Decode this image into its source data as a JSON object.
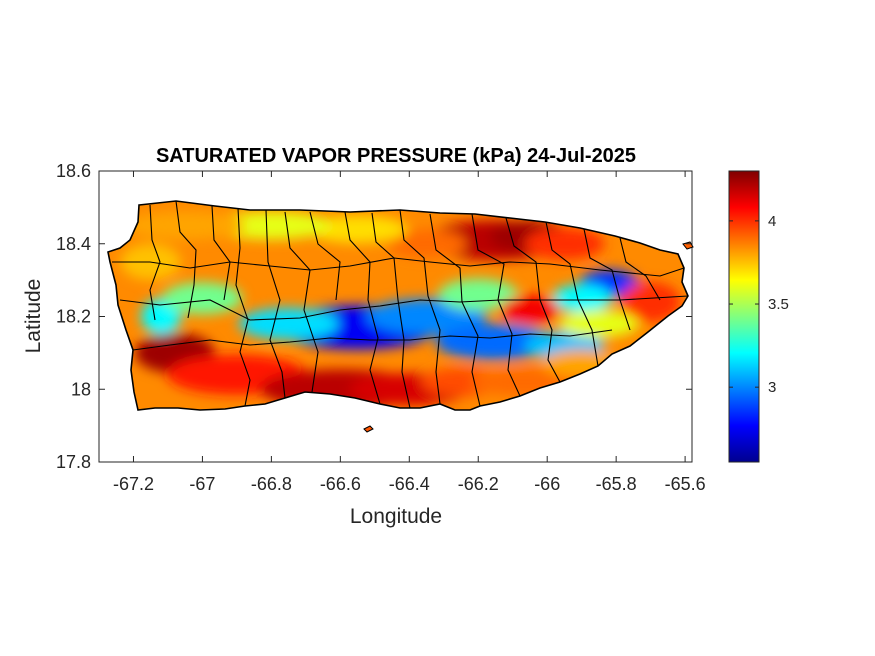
{
  "chart_data": {
    "type": "heatmap",
    "title": "SATURATED VAPOR PRESSURE (kPa) 24-Jul-2025",
    "xlabel": "Longitude",
    "ylabel": "Latitude",
    "xlim": [
      -67.3,
      -65.58
    ],
    "ylim": [
      17.8,
      18.6
    ],
    "xticks": [
      -67.2,
      -67,
      -66.8,
      -66.6,
      -66.4,
      -66.2,
      -66,
      -65.8,
      -65.6
    ],
    "xtick_labels": [
      "-67.2",
      "-67",
      "-66.8",
      "-66.6",
      "-66.4",
      "-66.2",
      "-66",
      "-65.8",
      "-65.6"
    ],
    "yticks": [
      17.8,
      18,
      18.2,
      18.4,
      18.6
    ],
    "ytick_labels": [
      "17.8",
      "18",
      "18.2",
      "18.4",
      "18.6"
    ],
    "colormap": "jet",
    "colorbar": {
      "range": [
        2.55,
        4.3
      ],
      "ticks": [
        3,
        3.5,
        4
      ],
      "tick_labels": [
        "3",
        "3.5",
        "4"
      ]
    },
    "spatial_pattern": [
      {
        "region": "south coast plain (-67.1 to -66.2 lon, ~18.0 lat)",
        "value_kpa": 4.15
      },
      {
        "region": "southwest corner near -67.1, 18.1",
        "value_kpa": 4.25
      },
      {
        "region": "northeast near -66.1, 18.41",
        "value_kpa": 4.15
      },
      {
        "region": "north coast west (-66.9 to -66.6, ~18.45)",
        "value_kpa": 3.6
      },
      {
        "region": "central mountain ridge near -66.58, 18.17",
        "value_kpa": 2.6
      },
      {
        "region": "central-east ridge near -66.1, 18.12",
        "value_kpa": 2.85
      },
      {
        "region": "El Yunque area near -65.8, 18.3",
        "value_kpa": 2.8
      },
      {
        "region": "west interior near -67.12, 18.2",
        "value_kpa": 3.2
      }
    ],
    "grid": false
  },
  "colors": {
    "outline": "#000000",
    "background": "#ffffff",
    "axes": "#262626"
  }
}
